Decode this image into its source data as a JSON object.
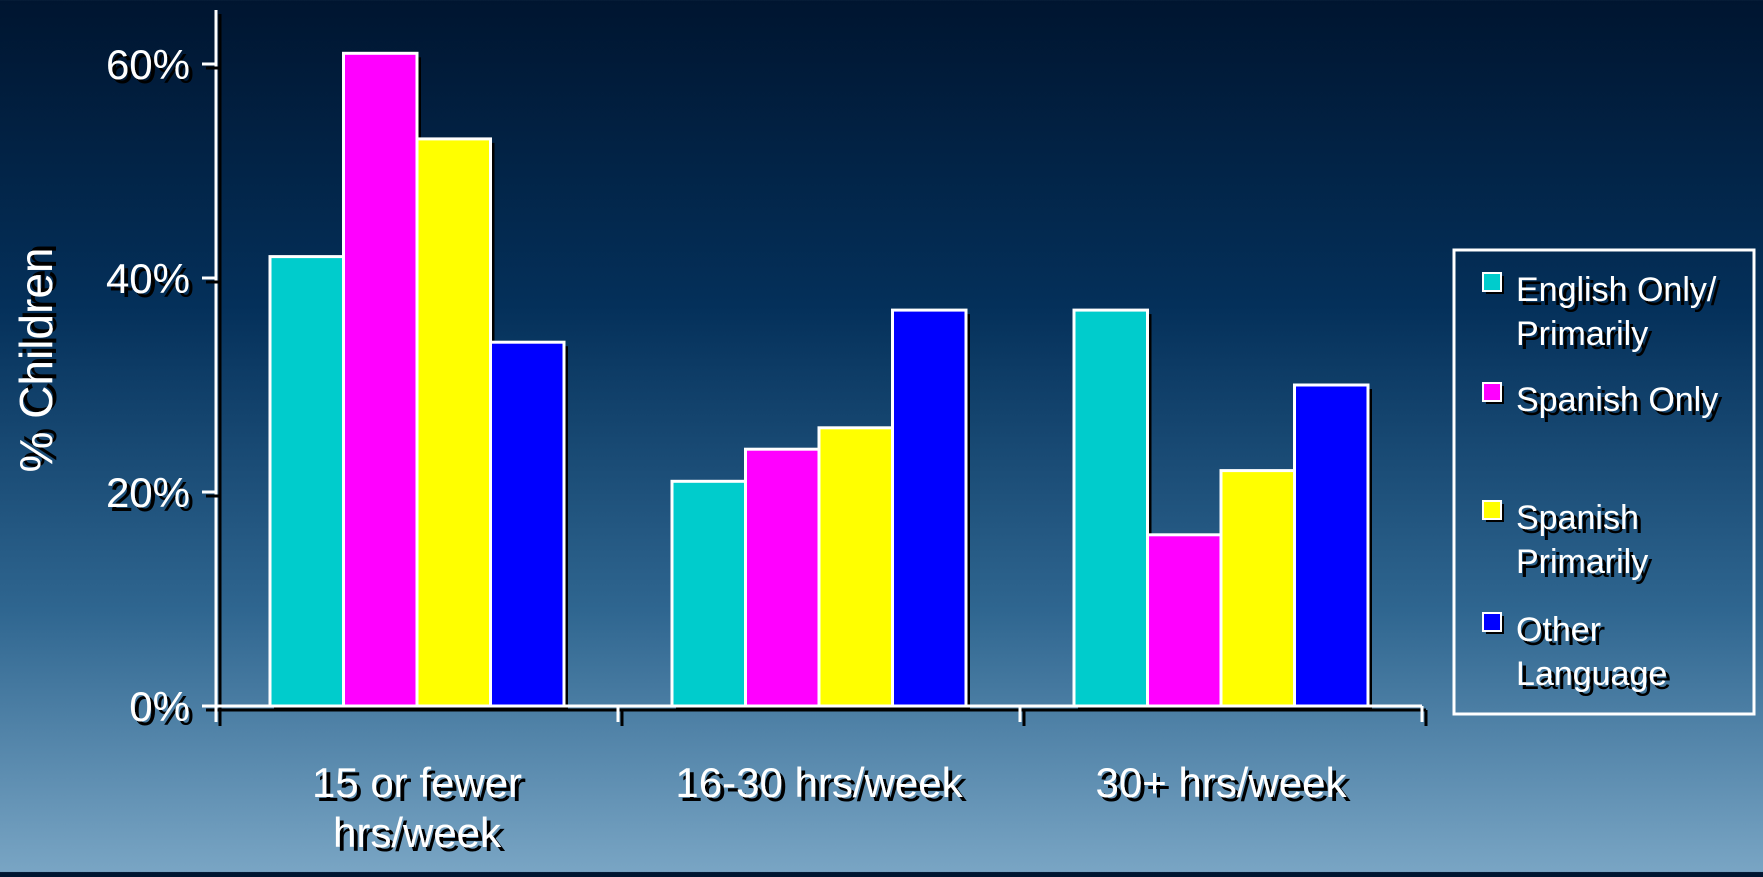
{
  "chart_data": {
    "type": "bar",
    "title": "",
    "xlabel": "",
    "ylabel": "% Children",
    "ylim": [
      0,
      60
    ],
    "yticks": [
      0,
      20,
      40,
      60
    ],
    "ytick_labels": [
      "0%",
      "20%",
      "40%",
      "60%"
    ],
    "categories": [
      "15 or fewer hrs/week",
      "16-30 hrs/week",
      "30+ hrs/week"
    ],
    "series": [
      {
        "name": "English Only/ Primarily",
        "color": "#00CCCC",
        "values": [
          42,
          21,
          37
        ]
      },
      {
        "name": "Spanish Only",
        "color": "#FF00FF",
        "values": [
          61,
          24,
          16
        ]
      },
      {
        "name": "Spanish Primarily",
        "color": "#FFFF00",
        "values": [
          53,
          26,
          22
        ]
      },
      {
        "name": "Other Language",
        "color": "#0000FF",
        "values": [
          34,
          37,
          30
        ]
      }
    ],
    "legend_position": "right",
    "grid": false
  }
}
